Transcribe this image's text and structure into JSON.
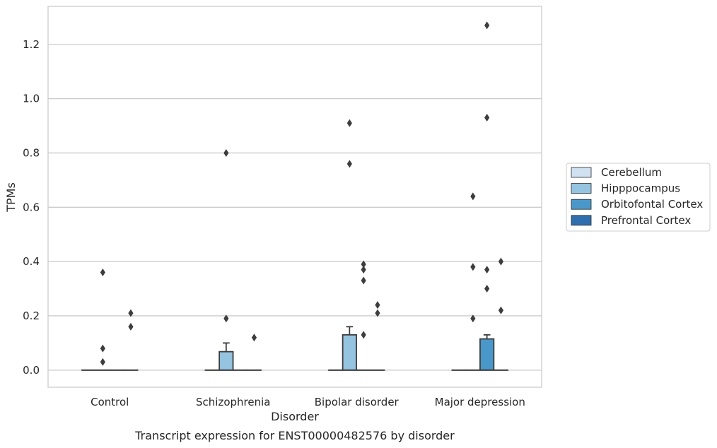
{
  "chart_data": {
    "type": "box",
    "title": "",
    "caption": "Transcript expression for ENST00000482576 by disorder",
    "xlabel": "Disorder",
    "ylabel": "TPMs",
    "categories": [
      "Control",
      "Schizophrenia",
      "Bipolar disorder",
      "Major depression"
    ],
    "ylim": [
      -0.063,
      1.34
    ],
    "yticks": [
      0.0,
      0.2,
      0.4,
      0.6,
      0.8,
      1.0,
      1.2
    ],
    "ytick_labels": [
      "0.0",
      "0.2",
      "0.4",
      "0.6",
      "0.8",
      "1.0",
      "1.2"
    ],
    "grid": "horizontal",
    "legend_position": "right",
    "series": [
      {
        "name": "Cerebellum",
        "color": "#d0e1f2",
        "boxes": [
          {
            "category": "Control",
            "q1": 0,
            "median": 0,
            "q3": 0,
            "whislo": 0,
            "whishi": 0,
            "fliers": []
          },
          {
            "category": "Schizophrenia",
            "q1": 0,
            "median": 0,
            "q3": 0,
            "whislo": 0,
            "whishi": 0,
            "fliers": []
          },
          {
            "category": "Bipolar disorder",
            "q1": 0,
            "median": 0,
            "q3": 0,
            "whislo": 0,
            "whishi": 0,
            "fliers": []
          },
          {
            "category": "Major depression",
            "q1": 0,
            "median": 0,
            "q3": 0,
            "whislo": 0,
            "whishi": 0,
            "fliers": []
          }
        ]
      },
      {
        "name": "Hipppocampus",
        "color": "#94c4df",
        "boxes": [
          {
            "category": "Control",
            "q1": 0,
            "median": 0,
            "q3": 0,
            "whislo": 0,
            "whishi": 0,
            "fliers": [
              0.36,
              0.08,
              0.03
            ]
          },
          {
            "category": "Schizophrenia",
            "q1": 0,
            "median": 0,
            "q3": 0.068,
            "whislo": 0,
            "whishi": 0.1,
            "fliers": [
              0.8,
              0.19
            ]
          },
          {
            "category": "Bipolar disorder",
            "q1": 0,
            "median": 0,
            "q3": 0.13,
            "whislo": 0,
            "whishi": 0.16,
            "fliers": [
              0.91,
              0.76
            ]
          },
          {
            "category": "Major depression",
            "q1": 0,
            "median": 0,
            "q3": 0,
            "whislo": 0,
            "whishi": 0,
            "fliers": [
              0.64,
              0.38,
              0.19
            ]
          }
        ]
      },
      {
        "name": "Orbitofontal Cortex",
        "color": "#4a98c9",
        "boxes": [
          {
            "category": "Control",
            "q1": 0,
            "median": 0,
            "q3": 0,
            "whislo": 0,
            "whishi": 0,
            "fliers": []
          },
          {
            "category": "Schizophrenia",
            "q1": 0,
            "median": 0,
            "q3": 0,
            "whislo": 0,
            "whishi": 0,
            "fliers": []
          },
          {
            "category": "Bipolar disorder",
            "q1": 0,
            "median": 0,
            "q3": 0,
            "whislo": 0,
            "whishi": 0,
            "fliers": [
              0.39,
              0.37,
              0.33,
              0.13
            ]
          },
          {
            "category": "Major depression",
            "q1": 0,
            "median": 0,
            "q3": 0.115,
            "whislo": 0,
            "whishi": 0.13,
            "fliers": [
              1.27,
              0.93,
              0.37,
              0.3
            ]
          }
        ]
      },
      {
        "name": "Prefrontal Cortex",
        "color": "#2f6fb0",
        "boxes": [
          {
            "category": "Control",
            "q1": 0,
            "median": 0,
            "q3": 0,
            "whislo": 0,
            "whishi": 0,
            "fliers": [
              0.21,
              0.16
            ]
          },
          {
            "category": "Schizophrenia",
            "q1": 0,
            "median": 0,
            "q3": 0,
            "whislo": 0,
            "whishi": 0,
            "fliers": [
              0.12
            ]
          },
          {
            "category": "Bipolar disorder",
            "q1": 0,
            "median": 0,
            "q3": 0,
            "whislo": 0,
            "whishi": 0,
            "fliers": [
              0.24,
              0.21
            ]
          },
          {
            "category": "Major depression",
            "q1": 0,
            "median": 0,
            "q3": 0,
            "whislo": 0,
            "whishi": 0,
            "fliers": [
              0.4,
              0.22
            ]
          }
        ]
      }
    ]
  }
}
